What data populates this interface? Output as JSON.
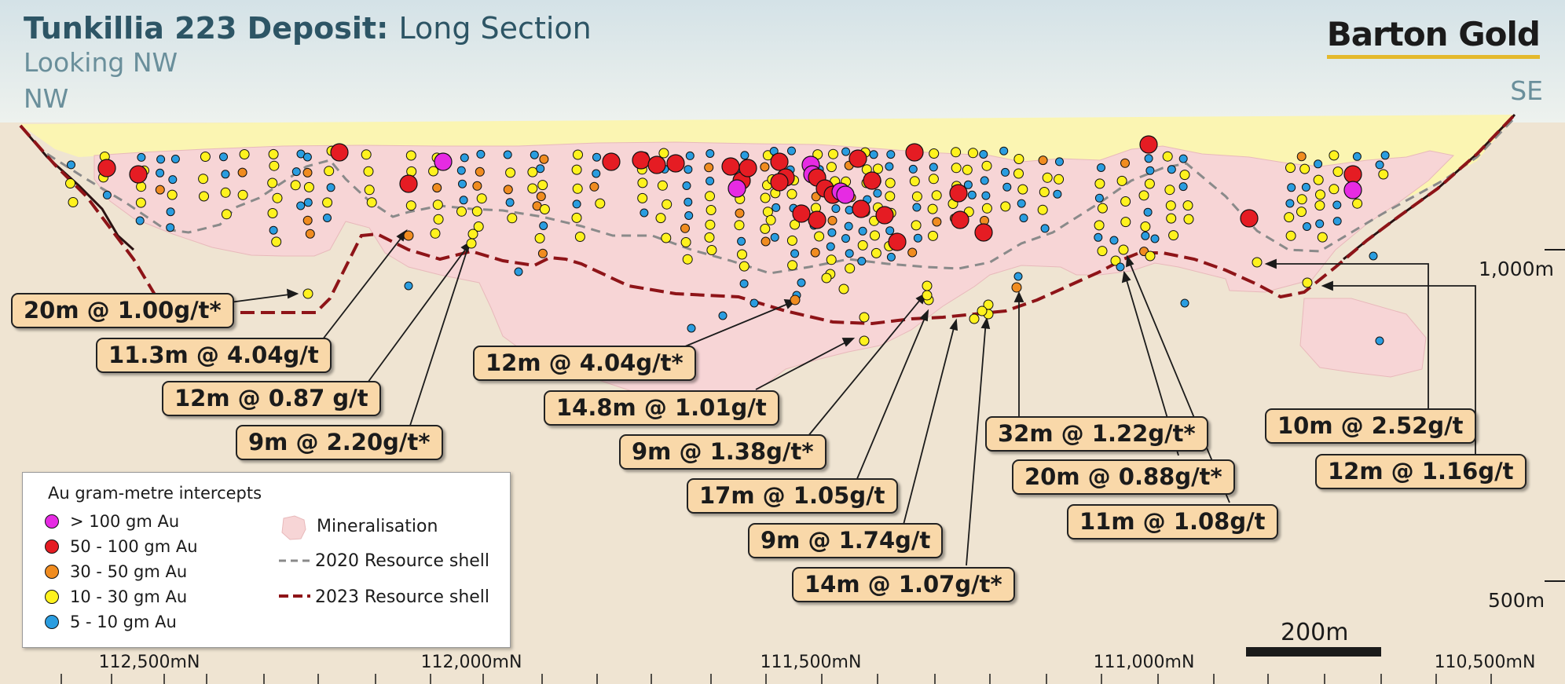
{
  "header": {
    "title_bold": "Tunkillia 223 Deposit:",
    "title_light": "Long Section",
    "subtitle": "Looking NW",
    "left_direction": "NW",
    "right_direction": "SE",
    "brand": "Barton Gold"
  },
  "callouts": [
    "20m @ 1.00g/t*",
    "11.3m @ 4.04g/t",
    "12m @ 0.87 g/t",
    "9m @ 2.20g/t*",
    "12m @ 4.04g/t*",
    "14.8m @ 1.01g/t",
    "9m @ 1.38g/t*",
    "17m @ 1.05g/t",
    "9m @ 1.74g/t",
    "14m @ 1.07g/t*",
    "32m @ 1.22g/t*",
    "20m @ 0.88g/t*",
    "11m @ 1.08g/t",
    "10m @ 2.52g/t",
    "12m @ 1.16g/t"
  ],
  "depth_labels": [
    "1,000m",
    "500m"
  ],
  "northing_labels": [
    "112,500mN",
    "112,000mN",
    "111,500mN",
    "111,000mN",
    "110,500mN"
  ],
  "scale_bar": "200m",
  "legend": {
    "title": "Au gram-metre intercepts",
    "items": [
      {
        "label": "> 100 gm Au",
        "color": "#e62be3"
      },
      {
        "label": "50 - 100 gm Au",
        "color": "#e51c23"
      },
      {
        "label": "30 - 50 gm Au",
        "color": "#f08c20"
      },
      {
        "label": "10 - 30 gm Au",
        "color": "#fff21e"
      },
      {
        "label": "5 - 10 gm Au",
        "color": "#2a9de0"
      }
    ],
    "mineralisation": "Mineralisation",
    "shell_2020": "2020 Resource shell",
    "shell_2023": "2023 Resource shell"
  },
  "colors": {
    "sky": "#dfe8ec",
    "ground": "#efe4d2",
    "cover": "#fbf5b2",
    "mineralisation": "#f7d5d6",
    "shell_2020": "#8a8a8a",
    "shell_2023": "#8e1418",
    "callout_fill": "#f9d8a9",
    "brand_underline": "#e4b92c"
  }
}
